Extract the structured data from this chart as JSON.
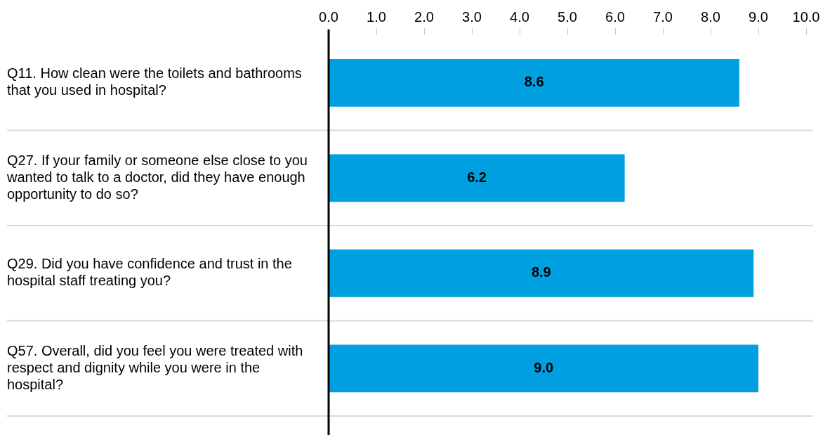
{
  "chart_data": {
    "type": "bar",
    "orientation": "horizontal",
    "categories": [
      "Q11. How clean were the toilets and bathrooms that you used in hospital?",
      "Q27. If your family or someone else close to you wanted to talk to a doctor, did they have enough opportunity to do so?",
      "Q29. Did you have confidence and trust in the hospital staff treating you?",
      "Q57. Overall, did you feel you were treated with respect and dignity while you were in the hospital?"
    ],
    "values": [
      8.6,
      6.2,
      8.9,
      9.0
    ],
    "value_labels": [
      "8.6",
      "6.2",
      "8.9",
      "9.0"
    ],
    "color": "#00a0e0",
    "xlim": [
      0,
      10
    ],
    "xticks": [
      {
        "value": 0,
        "label": "0.0"
      },
      {
        "value": 1,
        "label": "1.0"
      },
      {
        "value": 2,
        "label": "2.0"
      },
      {
        "value": 3,
        "label": "3.0"
      },
      {
        "value": 4,
        "label": "4.0"
      },
      {
        "value": 5,
        "label": "5.0"
      },
      {
        "value": 6,
        "label": "6.0"
      },
      {
        "value": 7,
        "label": "7.0"
      },
      {
        "value": 8,
        "label": "8.0"
      },
      {
        "value": 9,
        "label": "9.0"
      },
      {
        "value": 10,
        "label": "10.0"
      }
    ],
    "grid": "y",
    "legend": false
  }
}
